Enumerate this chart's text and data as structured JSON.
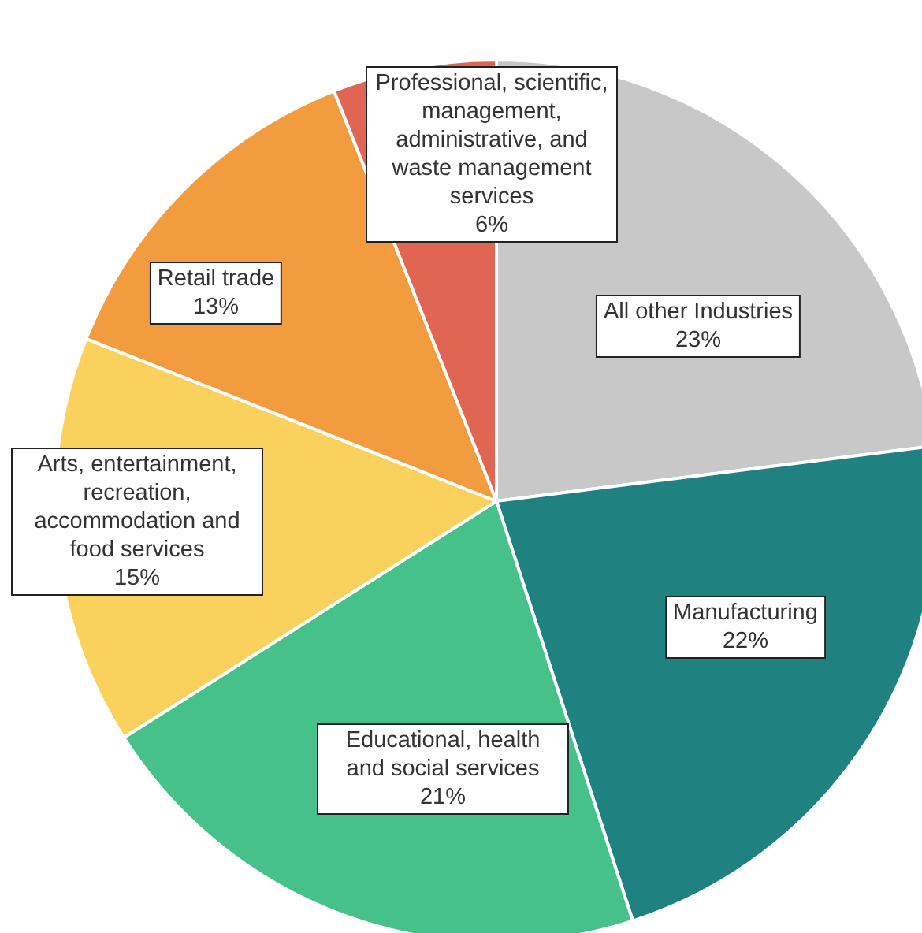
{
  "chart_data": {
    "type": "pie",
    "categories": [
      "All other Industries",
      "Manufacturing",
      "Educational, health and social services",
      "Arts, entertainment, recreation, accommodation and food services",
      "Retail trade",
      "Professional, scientific, management, administrative, and waste management services"
    ],
    "values": [
      23,
      22,
      21,
      15,
      13,
      6
    ],
    "value_labels": [
      "23%",
      "22%",
      "21%",
      "15%",
      "13%",
      "6%"
    ],
    "colors": [
      "#c8c8c9",
      "#1f8281",
      "#45c189",
      "#f9d15c",
      "#f29c3f",
      "#e06552"
    ],
    "legend": false
  }
}
